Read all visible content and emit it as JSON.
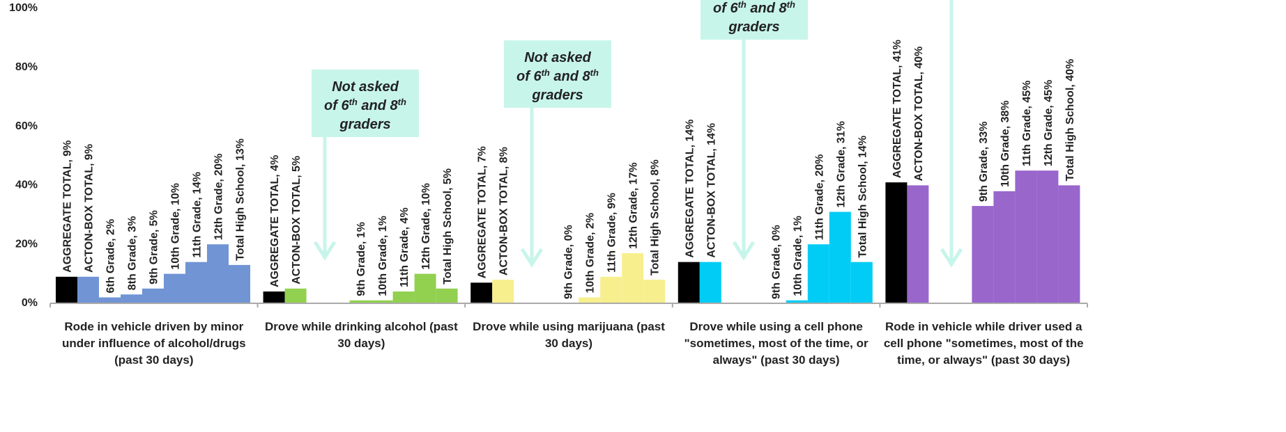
{
  "chart_data": {
    "type": "bar",
    "categories": [
      "Rode in vehicle driven by minor under influence of alcohol/drugs (past 30 days)",
      "Drove while drinking alcohol (past 30 days)",
      "Drove while using marijuana (past 30 days)",
      "Drove while using a cell phone \"sometimes, most of the time, or always\" (past 30 days)",
      "Rode in  vehicle while driver used a cell phone \"sometimes, most of the time, or always\" (past 30 days)"
    ],
    "category_colors": [
      "#7094d4",
      "#92d050",
      "#f7ef8e",
      "#00ccf5",
      "#9966cc"
    ],
    "series": [
      {
        "name": "AGGREGATE TOTAL",
        "color": "#000000",
        "values": [
          9,
          4,
          7,
          14,
          41
        ],
        "value_labels": [
          "AGGREGATE TOTAL, 9%",
          "AGGREGATE TOTAL, 4%",
          "AGGREGATE TOTAL, 7%",
          "AGGREGATE TOTAL, 14%",
          "AGGREGATE TOTAL, 41%"
        ]
      },
      {
        "name": "ACTON-BOX TOTAL",
        "values": [
          9,
          5,
          8,
          14,
          40
        ],
        "value_labels": [
          "ACTON-BOX TOTAL, 9%",
          "ACTON-BOX TOTAL, 5%",
          "ACTON-BOX TOTAL, 8%",
          "ACTON-BOX TOTAL, 14%",
          "ACTON-BOX TOTAL, 40%"
        ]
      },
      {
        "name": "6th Grade",
        "values": [
          2,
          null,
          null,
          null,
          null
        ],
        "value_labels": [
          "6th Grade, 2%",
          null,
          null,
          null,
          null
        ]
      },
      {
        "name": "8th Grade",
        "values": [
          3,
          null,
          null,
          null,
          null
        ],
        "value_labels": [
          "8th Grade, 3%",
          null,
          null,
          null,
          null
        ]
      },
      {
        "name": "9th Grade",
        "values": [
          5,
          1,
          0,
          0,
          33
        ],
        "value_labels": [
          "9th Grade, 5%",
          "9th Grade, 1%",
          "9th Grade, 0%",
          "9th Grade, 0%",
          "9th Grade, 33%"
        ]
      },
      {
        "name": "10th Grade",
        "values": [
          10,
          1,
          2,
          1,
          38
        ],
        "value_labels": [
          "10th Grade, 10%",
          "10th Grade, 1%",
          "10th Grade, 2%",
          "10th Grade, 1%",
          "10th Grade, 38%"
        ]
      },
      {
        "name": "11th Grade",
        "values": [
          14,
          4,
          9,
          20,
          45
        ],
        "value_labels": [
          "11th Grade, 14%",
          "11th Grade, 4%",
          "11th Grade, 9%",
          "11th Grade, 20%",
          "11th Grade, 45%"
        ]
      },
      {
        "name": "12th Grade",
        "values": [
          20,
          10,
          17,
          31,
          45
        ],
        "value_labels": [
          "12th Grade, 20%",
          "12th Grade, 10%",
          "12th Grade, 17%",
          "12th Grade, 31%",
          "12th Grade, 45%"
        ]
      },
      {
        "name": "Total High School",
        "values": [
          13,
          5,
          8,
          14,
          40
        ],
        "value_labels": [
          "Total High School, 13%",
          "Total High School, 5%",
          "Total High School, 8%",
          "Total High School, 14%",
          "Total High School, 40%"
        ]
      }
    ],
    "ylim": [
      0,
      100
    ],
    "yticks": [
      {
        "value": 0,
        "label": "0%"
      },
      {
        "value": 20,
        "label": "20%"
      },
      {
        "value": 40,
        "label": "40%"
      },
      {
        "value": 60,
        "label": "60%"
      },
      {
        "value": 80,
        "label": "80%"
      },
      {
        "value": 100,
        "label": "100%"
      }
    ],
    "annotation": {
      "line1": "Not asked",
      "line2": [
        "of 6",
        "th",
        " and 8",
        "th"
      ],
      "line3": "graders"
    }
  }
}
